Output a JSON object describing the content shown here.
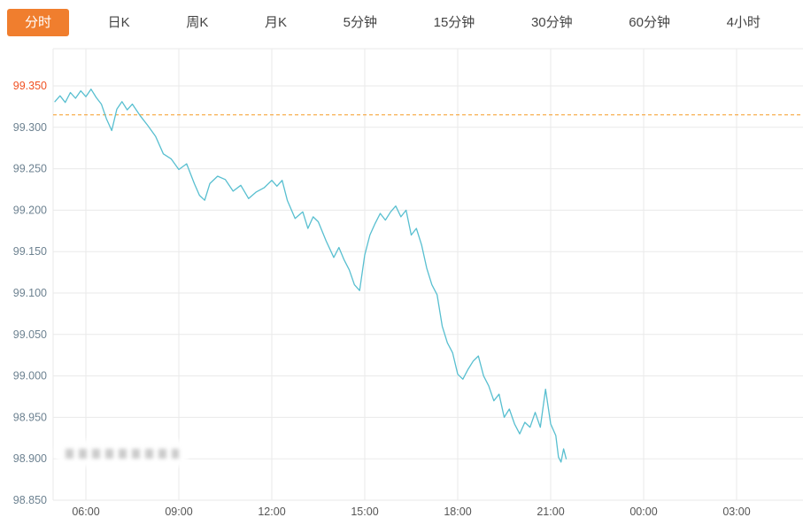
{
  "tabbar": {
    "tabs": [
      {
        "id": "timeline",
        "label": "分时",
        "active": true
      },
      {
        "id": "daily-k",
        "label": "日K",
        "active": false
      },
      {
        "id": "weekly-k",
        "label": "周K",
        "active": false
      },
      {
        "id": "monthly-k",
        "label": "月K",
        "active": false
      },
      {
        "id": "5min",
        "label": "5分钟",
        "active": false
      },
      {
        "id": "15min",
        "label": "15分钟",
        "active": false
      },
      {
        "id": "30min",
        "label": "30分钟",
        "active": false
      },
      {
        "id": "60min",
        "label": "60分钟",
        "active": false
      },
      {
        "id": "4hour",
        "label": "4小时",
        "active": false
      }
    ]
  },
  "colors": {
    "accent": "#f07e2e",
    "accent_text": "#ffffff",
    "tab_text": "#444444",
    "line": "#58bfd0",
    "grid": "#eaeaea",
    "axis_label": "#6d8291",
    "x_label": "#555555",
    "highlight_label": "#f05123",
    "ref_line": "#f59a23",
    "background": "#ffffff"
  },
  "chart_data": {
    "type": "line",
    "title": "",
    "xlabel": "",
    "ylabel": "",
    "grid": true,
    "legend": false,
    "ylim": [
      98.85,
      99.395
    ],
    "y_ticks": [
      "99.350",
      "99.300",
      "99.250",
      "99.200",
      "99.150",
      "99.100",
      "99.050",
      "99.000",
      "98.950",
      "98.900",
      "98.850"
    ],
    "highlighted_y_tick": "99.350",
    "x_ticks": [
      "06:00",
      "09:00",
      "12:00",
      "15:00",
      "18:00",
      "21:00",
      "00:00",
      "03:00"
    ],
    "reference_value": 99.315,
    "last_value": 98.9,
    "points": [
      [
        "05:00",
        99.331
      ],
      [
        "05:10",
        99.338
      ],
      [
        "05:20",
        99.33
      ],
      [
        "05:30",
        99.342
      ],
      [
        "05:40",
        99.335
      ],
      [
        "05:50",
        99.344
      ],
      [
        "06:00",
        99.337
      ],
      [
        "06:10",
        99.346
      ],
      [
        "06:20",
        99.336
      ],
      [
        "06:30",
        99.328
      ],
      [
        "06:40",
        99.31
      ],
      [
        "06:50",
        99.296
      ],
      [
        "07:00",
        99.322
      ],
      [
        "07:10",
        99.331
      ],
      [
        "07:20",
        99.321
      ],
      [
        "07:30",
        99.328
      ],
      [
        "07:45",
        99.314
      ],
      [
        "08:00",
        99.302
      ],
      [
        "08:15",
        99.289
      ],
      [
        "08:30",
        99.268
      ],
      [
        "08:45",
        99.262
      ],
      [
        "09:00",
        99.249
      ],
      [
        "09:15",
        99.256
      ],
      [
        "09:30",
        99.232
      ],
      [
        "09:40",
        99.218
      ],
      [
        "09:50",
        99.212
      ],
      [
        "10:00",
        99.232
      ],
      [
        "10:15",
        99.241
      ],
      [
        "10:30",
        99.237
      ],
      [
        "10:45",
        99.223
      ],
      [
        "11:00",
        99.23
      ],
      [
        "11:15",
        99.214
      ],
      [
        "11:30",
        99.222
      ],
      [
        "11:45",
        99.227
      ],
      [
        "12:00",
        99.236
      ],
      [
        "12:10",
        99.229
      ],
      [
        "12:20",
        99.236
      ],
      [
        "12:30",
        99.212
      ],
      [
        "12:45",
        99.19
      ],
      [
        "13:00",
        99.198
      ],
      [
        "13:10",
        99.178
      ],
      [
        "13:20",
        99.192
      ],
      [
        "13:30",
        99.186
      ],
      [
        "13:45",
        99.163
      ],
      [
        "14:00",
        99.143
      ],
      [
        "14:10",
        99.155
      ],
      [
        "14:20",
        99.14
      ],
      [
        "14:30",
        99.128
      ],
      [
        "14:40",
        99.11
      ],
      [
        "14:50",
        99.103
      ],
      [
        "15:00",
        99.146
      ],
      [
        "15:10",
        99.17
      ],
      [
        "15:20",
        99.184
      ],
      [
        "15:30",
        99.196
      ],
      [
        "15:40",
        99.188
      ],
      [
        "15:50",
        99.198
      ],
      [
        "16:00",
        99.205
      ],
      [
        "16:10",
        99.192
      ],
      [
        "16:20",
        99.2
      ],
      [
        "16:30",
        99.17
      ],
      [
        "16:40",
        99.178
      ],
      [
        "16:50",
        99.158
      ],
      [
        "17:00",
        99.13
      ],
      [
        "17:10",
        99.11
      ],
      [
        "17:20",
        99.098
      ],
      [
        "17:30",
        99.06
      ],
      [
        "17:40",
        99.04
      ],
      [
        "17:50",
        99.028
      ],
      [
        "18:00",
        99.002
      ],
      [
        "18:10",
        98.996
      ],
      [
        "18:20",
        99.008
      ],
      [
        "18:30",
        99.018
      ],
      [
        "18:40",
        99.024
      ],
      [
        "18:50",
        99.0
      ],
      [
        "19:00",
        98.988
      ],
      [
        "19:10",
        98.97
      ],
      [
        "19:20",
        98.978
      ],
      [
        "19:30",
        98.95
      ],
      [
        "19:40",
        98.96
      ],
      [
        "19:50",
        98.942
      ],
      [
        "20:00",
        98.93
      ],
      [
        "20:10",
        98.944
      ],
      [
        "20:20",
        98.938
      ],
      [
        "20:30",
        98.956
      ],
      [
        "20:40",
        98.938
      ],
      [
        "20:50",
        98.984
      ],
      [
        "21:00",
        98.942
      ],
      [
        "21:10",
        98.928
      ],
      [
        "21:15",
        98.902
      ],
      [
        "21:20",
        98.896
      ],
      [
        "21:25",
        98.912
      ],
      [
        "21:30",
        98.9
      ]
    ]
  }
}
